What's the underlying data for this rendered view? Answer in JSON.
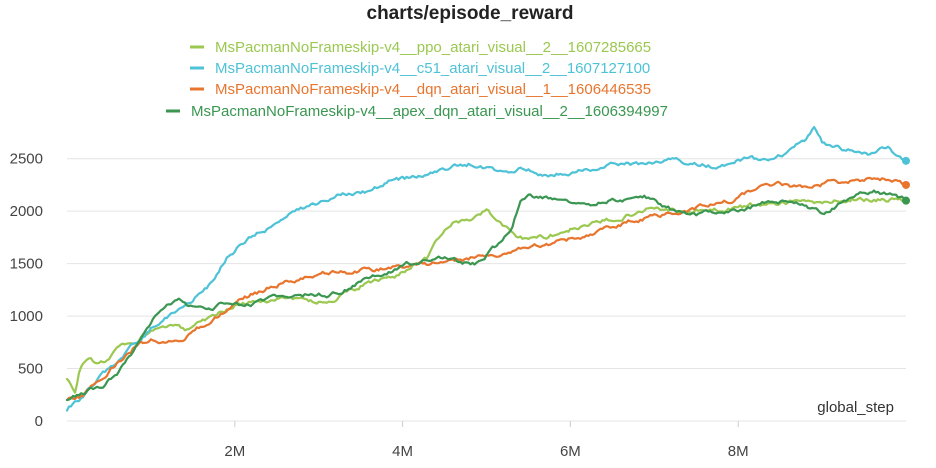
{
  "chart_data": {
    "type": "line",
    "title": "charts/episode_reward",
    "xlabel": "global_step",
    "ylabel": "",
    "xlim": [
      0,
      10000000
    ],
    "ylim": [
      0,
      2850
    ],
    "x_ticks": [
      2000000,
      4000000,
      6000000,
      8000000
    ],
    "x_tick_labels": [
      "2M",
      "4M",
      "6M",
      "8M"
    ],
    "y_ticks": [
      0,
      500,
      1000,
      1500,
      2000,
      2500
    ],
    "y_tick_labels": [
      "0",
      "500",
      "1000",
      "1500",
      "2000",
      "2500"
    ],
    "grid": "horizontal",
    "legend_position": "top",
    "series": [
      {
        "name": "MsPacmanNoFrameskip-v4__ppo_atari_visual__2__1607285665",
        "color": "#9bc850",
        "x": [
          0,
          100000,
          150000,
          250000,
          350000,
          450000,
          600000,
          800000,
          1000000,
          1200000,
          1400000,
          1600000,
          1800000,
          2000000,
          2200000,
          2400000,
          2600000,
          2800000,
          3000000,
          3100000,
          3300000,
          3500000,
          3700000,
          3900000,
          4100000,
          4300000,
          4450000,
          4600000,
          4800000,
          5000000,
          5200000,
          5500000,
          5800000,
          6000000,
          6300000,
          6600000,
          7000000,
          7400000,
          7800000,
          8200000,
          8600000,
          9000000,
          9400000,
          9700000,
          10000000
        ],
        "y": [
          400,
          250,
          500,
          620,
          550,
          560,
          700,
          760,
          850,
          900,
          870,
          960,
          1030,
          1100,
          1130,
          1150,
          1190,
          1150,
          1140,
          1120,
          1200,
          1280,
          1340,
          1370,
          1480,
          1550,
          1760,
          1880,
          1920,
          2010,
          1850,
          1720,
          1780,
          1830,
          1880,
          1950,
          2040,
          1990,
          2020,
          2060,
          2090,
          2080,
          2120,
          2110,
          2100
        ]
      },
      {
        "name": "MsPacmanNoFrameskip-v4__c51_atari_visual__2__1607127100",
        "color": "#4ec2d6",
        "x": [
          0,
          150000,
          300000,
          500000,
          700000,
          900000,
          1100000,
          1300000,
          1500000,
          1700000,
          1900000,
          2100000,
          2300000,
          2500000,
          2700000,
          3000000,
          3300000,
          3600000,
          3900000,
          4200000,
          4500000,
          4800000,
          5100000,
          5400000,
          5700000,
          6000000,
          6300000,
          6600000,
          6900000,
          7200000,
          7500000,
          7800000,
          8100000,
          8400000,
          8600000,
          8800000,
          8900000,
          9000000,
          9300000,
          9600000,
          9800000,
          10000000
        ],
        "y": [
          100,
          200,
          350,
          500,
          650,
          800,
          950,
          1050,
          1150,
          1300,
          1550,
          1700,
          1800,
          1880,
          1980,
          2080,
          2180,
          2200,
          2300,
          2330,
          2400,
          2450,
          2380,
          2400,
          2350,
          2380,
          2400,
          2450,
          2450,
          2480,
          2460,
          2420,
          2500,
          2480,
          2550,
          2680,
          2800,
          2650,
          2580,
          2550,
          2600,
          2480
        ]
      },
      {
        "name": "MsPacmanNoFrameskip-v4__dqn_atari_visual__1__1606446535",
        "color": "#e8752e",
        "x": [
          0,
          200000,
          400000,
          600000,
          800000,
          1000000,
          1200000,
          1400000,
          1600000,
          1800000,
          2000000,
          2200000,
          2500000,
          2800000,
          3100000,
          3400000,
          3700000,
          4000000,
          4300000,
          4600000,
          4900000,
          5200000,
          5500000,
          5800000,
          6100000,
          6400000,
          6700000,
          7000000,
          7300000,
          7600000,
          7900000,
          8200000,
          8500000,
          8800000,
          9100000,
          9400000,
          9700000,
          10000000
        ],
        "y": [
          200,
          250,
          400,
          550,
          700,
          780,
          750,
          800,
          900,
          1000,
          1100,
          1200,
          1300,
          1350,
          1400,
          1420,
          1450,
          1480,
          1500,
          1530,
          1570,
          1600,
          1650,
          1700,
          1750,
          1830,
          1900,
          1950,
          2000,
          2050,
          2100,
          2200,
          2250,
          2230,
          2270,
          2290,
          2310,
          2250
        ]
      },
      {
        "name": "MsPacmanNoFrameskip-v4__apex_dqn_atari_visual__2__1606394997",
        "color": "#3a9651",
        "x": [
          0,
          150000,
          300000,
          450000,
          600000,
          750000,
          900000,
          1050000,
          1200000,
          1350000,
          1500000,
          1650000,
          1800000,
          1950000,
          2100000,
          2300000,
          2500000,
          2700000,
          2900000,
          3100000,
          3300000,
          3500000,
          3700000,
          3900000,
          4100000,
          4300000,
          4500000,
          4700000,
          4900000,
          5100000,
          5300000,
          5400000,
          5500000,
          5700000,
          5900000,
          6100000,
          6300000,
          6500000,
          6700000,
          6900000,
          7200000,
          7500000,
          7800000,
          8100000,
          8400000,
          8700000,
          9000000,
          9300000,
          9600000,
          9800000,
          10000000
        ],
        "y": [
          200,
          250,
          300,
          350,
          450,
          600,
          800,
          1000,
          1100,
          1150,
          1080,
          1050,
          1100,
          1130,
          1080,
          1130,
          1180,
          1200,
          1210,
          1200,
          1250,
          1320,
          1400,
          1450,
          1500,
          1550,
          1580,
          1500,
          1500,
          1650,
          1850,
          2100,
          2150,
          2130,
          2120,
          2100,
          2080,
          2100,
          2120,
          2130,
          2020,
          1980,
          2000,
          2030,
          2100,
          2060,
          1980,
          2100,
          2200,
          2150,
          2100
        ]
      }
    ]
  }
}
